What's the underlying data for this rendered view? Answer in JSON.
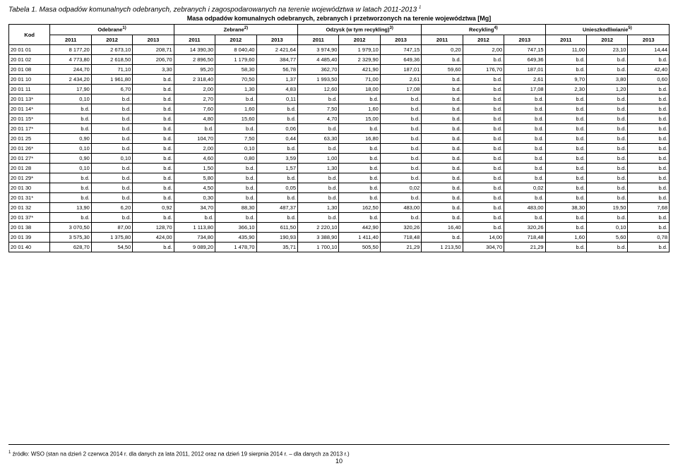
{
  "title": "Tabela 1. Masa odpadów komunalnych odebranych, zebranych i zagospodarowanych na terenie województwa w latach 2011-2013",
  "title_sup": "1",
  "subtitle": "Masa odpadów komunalnych odebranych, zebranych i przetworzonych na terenie województwa [Mg]",
  "col_kod": "Kod",
  "groups": [
    {
      "label": "Odebrane",
      "sup": "1)"
    },
    {
      "label": "Zebrane",
      "sup": "2)"
    },
    {
      "label": "Odzysk (w tym recykling)",
      "sup": "3)"
    },
    {
      "label": "Recykling",
      "sup": "4)"
    },
    {
      "label": "Unieszkodliwianie",
      "sup": "5)"
    }
  ],
  "years": [
    "2011",
    "2012",
    "2013",
    "2011",
    "2012",
    "2013",
    "2011",
    "2012",
    "2013",
    "2011",
    "2012",
    "2013",
    "2011",
    "2012",
    "2013"
  ],
  "rows": [
    {
      "code": "20 01 01",
      "c": [
        "8 177,20",
        "2 673,10",
        "208,71",
        "14 390,30",
        "8 040,40",
        "2 421,64",
        "3 974,90",
        "1 979,10",
        "747,15",
        "0,20",
        "2,00",
        "747,15",
        "11,00",
        "23,10",
        "14,44"
      ]
    },
    {
      "code": "20 01 02",
      "c": [
        "4 773,80",
        "2 618,50",
        "206,70",
        "2 896,50",
        "1 179,60",
        "384,77",
        "4 485,40",
        "2 329,90",
        "649,36",
        "b.d.",
        "b.d.",
        "649,36",
        "b.d.",
        "b.d.",
        "b.d."
      ]
    },
    {
      "code": "20 01 08",
      "c": [
        "244,70",
        "71,10",
        "3,30",
        "95,20",
        "58,30",
        "56,78",
        "362,70",
        "421,90",
        "187,01",
        "59,60",
        "176,70",
        "187,01",
        "b.d.",
        "b.d.",
        "42,40"
      ]
    },
    {
      "code": "20 01 10",
      "c": [
        "2 434,20",
        "1 961,80",
        "b.d.",
        "2 318,40",
        "70,50",
        "1,37",
        "1 993,50",
        "71,00",
        "2,61",
        "b.d.",
        "b.d.",
        "2,61",
        "9,70",
        "3,80",
        "0,60"
      ]
    },
    {
      "code": "20 01 11",
      "c": [
        "17,90",
        "6,70",
        "b.d.",
        "2,00",
        "1,30",
        "4,83",
        "12,60",
        "18,00",
        "17,08",
        "b.d.",
        "b.d.",
        "17,08",
        "2,30",
        "1,20",
        "b.d."
      ]
    },
    {
      "code": "20 01 13*",
      "c": [
        "0,10",
        "b.d.",
        "b.d.",
        "2,70",
        "b.d.",
        "0,11",
        "b.d.",
        "b.d.",
        "b.d.",
        "b.d.",
        "b.d.",
        "b.d.",
        "b.d.",
        "b.d.",
        "b.d."
      ]
    },
    {
      "code": "20 01 14*",
      "c": [
        "b.d.",
        "b.d.",
        "b.d.",
        "7,60",
        "1,60",
        "b.d.",
        "7,50",
        "1,60",
        "b.d.",
        "b.d.",
        "b.d.",
        "b.d.",
        "b.d.",
        "b.d.",
        "b.d."
      ]
    },
    {
      "code": "20 01 15*",
      "c": [
        "b.d.",
        "b.d.",
        "b.d.",
        "4,80",
        "15,60",
        "b.d.",
        "4,70",
        "15,00",
        "b.d.",
        "b.d.",
        "b.d.",
        "b.d.",
        "b.d.",
        "b.d.",
        "b.d."
      ]
    },
    {
      "code": "20 01 17*",
      "c": [
        "b.d.",
        "b.d.",
        "b.d.",
        "b.d.",
        "b.d.",
        "0,06",
        "b.d.",
        "b.d.",
        "b.d.",
        "b.d.",
        "b.d.",
        "b.d.",
        "b.d.",
        "b.d.",
        "b.d."
      ]
    },
    {
      "code": "20 01 25",
      "c": [
        "0,90",
        "b.d.",
        "b.d.",
        "104,70",
        "7,50",
        "0,44",
        "63,30",
        "16,80",
        "b.d.",
        "b.d.",
        "b.d.",
        "b.d.",
        "b.d.",
        "b.d.",
        "b.d."
      ]
    },
    {
      "code": "20 01 26*",
      "c": [
        "0,10",
        "b.d.",
        "b.d.",
        "2,00",
        "0,10",
        "b.d.",
        "b.d.",
        "b.d.",
        "b.d.",
        "b.d.",
        "b.d.",
        "b.d.",
        "b.d.",
        "b.d.",
        "b.d."
      ]
    },
    {
      "code": "20 01 27*",
      "c": [
        "0,90",
        "0,10",
        "b.d.",
        "4,60",
        "0,80",
        "3,59",
        "1,00",
        "b.d.",
        "b.d.",
        "b.d.",
        "b.d.",
        "b.d.",
        "b.d.",
        "b.d.",
        "b.d."
      ]
    },
    {
      "code": "20 01 28",
      "c": [
        "0,10",
        "b.d.",
        "b.d.",
        "1,50",
        "b.d.",
        "1,57",
        "1,30",
        "b.d.",
        "b.d.",
        "b.d.",
        "b.d.",
        "b.d.",
        "b.d.",
        "b.d.",
        "b.d."
      ]
    },
    {
      "code": "20 01 29*",
      "c": [
        "b.d.",
        "b.d.",
        "b.d.",
        "5,80",
        "b.d.",
        "b.d.",
        "b.d.",
        "b.d.",
        "b.d.",
        "b.d.",
        "b.d.",
        "b.d.",
        "b.d.",
        "b.d.",
        "b.d."
      ]
    },
    {
      "code": "20 01 30",
      "c": [
        "b.d.",
        "b.d.",
        "b.d.",
        "4,50",
        "b.d.",
        "0,05",
        "b.d.",
        "b.d.",
        "0,02",
        "b.d.",
        "b.d.",
        "0,02",
        "b.d.",
        "b.d.",
        "b.d."
      ]
    },
    {
      "code": "20 01 31*",
      "c": [
        "b.d.",
        "b.d.",
        "b.d.",
        "0,30",
        "b.d.",
        "b.d.",
        "b.d.",
        "b.d.",
        "b.d.",
        "b.d.",
        "b.d.",
        "b.d.",
        "b.d.",
        "b.d.",
        "b.d."
      ]
    },
    {
      "code": "20 01 32",
      "c": [
        "13,90",
        "6,20",
        "0,92",
        "34,70",
        "88,30",
        "487,37",
        "1,30",
        "162,50",
        "483,00",
        "b.d.",
        "b.d.",
        "483,00",
        "38,30",
        "19,50",
        "7,68"
      ]
    },
    {
      "code": "20 01 37*",
      "c": [
        "b.d.",
        "b.d.",
        "b.d.",
        "b.d.",
        "b.d.",
        "b.d.",
        "b.d.",
        "b.d.",
        "b.d.",
        "b.d.",
        "b.d.",
        "b.d.",
        "b.d.",
        "b.d.",
        "b.d."
      ]
    },
    {
      "code": "20 01 38",
      "c": [
        "3 070,50",
        "87,00",
        "128,70",
        "1 113,80",
        "366,10",
        "611,50",
        "2 220,10",
        "442,90",
        "320,26",
        "16,40",
        "b.d.",
        "320,26",
        "b.d.",
        "0,10",
        "b.d."
      ]
    },
    {
      "code": "20 01 39",
      "c": [
        "3 575,30",
        "1 375,80",
        "424,00",
        "734,80",
        "435,90",
        "190,93",
        "3 388,90",
        "1 411,40",
        "718,48",
        "b.d.",
        "14,00",
        "718,48",
        "1,60",
        "5,60",
        "0,78"
      ]
    },
    {
      "code": "20 01 40",
      "c": [
        "628,70",
        "54,50",
        "b.d.",
        "9 089,20",
        "1 478,70",
        "35,71",
        "1 700,10",
        "505,50",
        "21,29",
        "1 213,50",
        "304,70",
        "21,29",
        "b.d.",
        "b.d.",
        "b.d."
      ]
    }
  ],
  "footnote": "źródło: WSO (stan na dzień 2 czerwca 2014 r. dla danych za lata 2011, 2012 oraz na dzień 19 sierpnia 2014 r. – dla danych za 2013 r.)",
  "footnote_sup": "1",
  "pagenum": "10",
  "colwidths": {
    "code": 58,
    "data": 58
  }
}
